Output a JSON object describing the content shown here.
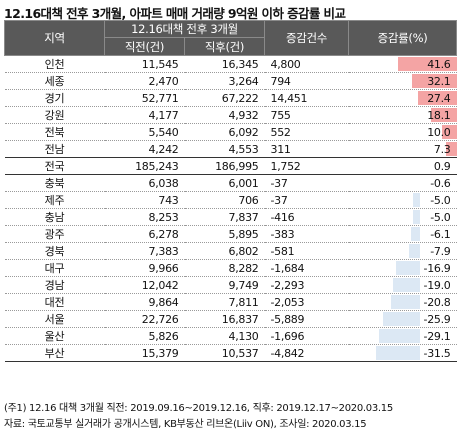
{
  "title": "12.16대책 전후 3개월, 아파트 매매 거래량 9억원 이하 증감률 비교",
  "header": {
    "region": "지역",
    "period": "12.16대책 전후 3개월",
    "before": "직전(건)",
    "after": "직후(건)",
    "change_count": "증감건수",
    "change_rate": "증감률(%)"
  },
  "rows": [
    {
      "region": "인천",
      "before": "11,545",
      "after": "16,345",
      "diff": "4,800",
      "rate": "41.6",
      "rate_value": 41.6
    },
    {
      "region": "세종",
      "before": "2,470",
      "after": "3,264",
      "diff": "794",
      "rate": "32.1",
      "rate_value": 32.1
    },
    {
      "region": "경기",
      "before": "52,771",
      "after": "67,222",
      "diff": "14,451",
      "rate": "27.4",
      "rate_value": 27.4
    },
    {
      "region": "강원",
      "before": "4,177",
      "after": "4,932",
      "diff": "755",
      "rate": "18.1",
      "rate_value": 18.1
    },
    {
      "region": "전북",
      "before": "5,540",
      "after": "6,092",
      "diff": "552",
      "rate": "10.0",
      "rate_value": 10.0
    },
    {
      "region": "전남",
      "before": "4,242",
      "after": "4,553",
      "diff": "311",
      "rate": "7.3",
      "rate_value": 7.3
    },
    {
      "region": "전국",
      "before": "185,243",
      "after": "186,995",
      "diff": "1,752",
      "rate": "0.9",
      "rate_value": 0.9,
      "national": true
    },
    {
      "region": "충북",
      "before": "6,038",
      "after": "6,001",
      "diff": "-37",
      "rate": "-0.6",
      "rate_value": -0.6
    },
    {
      "region": "제주",
      "before": "743",
      "after": "706",
      "diff": "-37",
      "rate": "-5.0",
      "rate_value": -5.0
    },
    {
      "region": "충남",
      "before": "8,253",
      "after": "7,837",
      "diff": "-416",
      "rate": "-5.0",
      "rate_value": -5.0
    },
    {
      "region": "광주",
      "before": "6,278",
      "after": "5,895",
      "diff": "-383",
      "rate": "-6.1",
      "rate_value": -6.1
    },
    {
      "region": "경북",
      "before": "7,383",
      "after": "6,802",
      "diff": "-581",
      "rate": "-7.9",
      "rate_value": -7.9
    },
    {
      "region": "대구",
      "before": "9,966",
      "after": "8,282",
      "diff": "-1,684",
      "rate": "-16.9",
      "rate_value": -16.9
    },
    {
      "region": "경남",
      "before": "12,042",
      "after": "9,749",
      "diff": "-2,293",
      "rate": "-19.0",
      "rate_value": -19.0
    },
    {
      "region": "대전",
      "before": "9,864",
      "after": "7,811",
      "diff": "-2,053",
      "rate": "-20.8",
      "rate_value": -20.8
    },
    {
      "region": "서울",
      "before": "22,726",
      "after": "16,837",
      "diff": "-5,889",
      "rate": "-25.9",
      "rate_value": -25.9
    },
    {
      "region": "울산",
      "before": "5,826",
      "after": "4,130",
      "diff": "-1,696",
      "rate": "-29.1",
      "rate_value": -29.1
    },
    {
      "region": "부산",
      "before": "15,379",
      "after": "10,537",
      "diff": "-4,842",
      "rate": "-31.5",
      "rate_value": -31.5
    }
  ],
  "colors": {
    "header_bg": "#595959",
    "positive_bar": "#f4a4a4",
    "negative_bar": "#dce8f4"
  },
  "footnotes": {
    "note": "(주1) 12.16 대책 3개월 직전: 2019.09.16~2019.12.16, 직후: 2019.12.17~2020.03.15",
    "source": "자료: 국토교통부 실거래가 공개시스템, KB부동산 리브온(Liiv ON), 조사일: 2020.03.15"
  }
}
